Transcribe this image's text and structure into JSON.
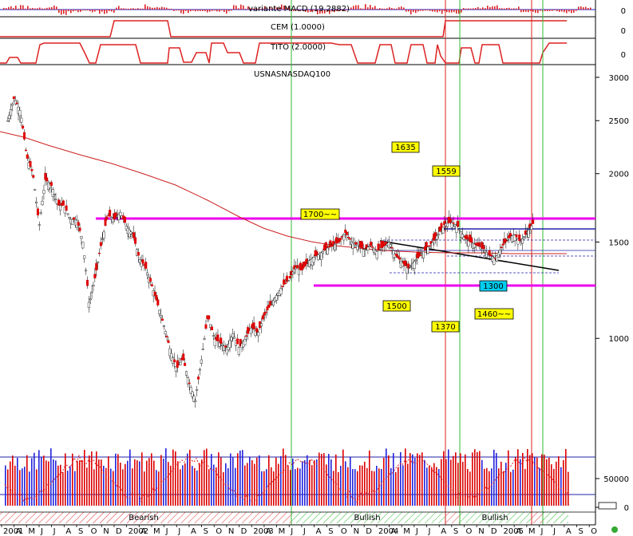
{
  "chart_data": {
    "type": "candlestick",
    "title": "USNASNASDAQ100",
    "x_axis": {
      "labels": [
        "2001",
        "A",
        "M",
        "J",
        "J",
        "A",
        "S",
        "O",
        "N",
        "D",
        "2002",
        "A",
        "M",
        "J",
        "J",
        "A",
        "S",
        "O",
        "N",
        "D",
        "2003",
        "A",
        "M",
        "J",
        "J",
        "A",
        "S",
        "O",
        "N",
        "D",
        "2004",
        "A",
        "M",
        "J",
        "J",
        "A",
        "S",
        "O",
        "N",
        "D",
        "2005",
        "A",
        "M",
        "J",
        "J",
        "A",
        "S",
        "O"
      ]
    },
    "y_axis": {
      "scale": "log",
      "tick_labels": [
        "3000",
        "2500",
        "2000",
        "1500",
        "1000"
      ],
      "ticks": [
        3000,
        2500,
        2000,
        1500,
        1000
      ],
      "range": [
        730,
        3050
      ]
    },
    "indicators": [
      {
        "name": "variante MACD (19.2882)",
        "axis_label": "0"
      },
      {
        "name": "CEM (1.0000)",
        "axis_label": "0"
      },
      {
        "name": "TITO (2.0000)",
        "axis_label": "0"
      }
    ],
    "volume": {
      "tick_labels": [
        "50000",
        "0"
      ],
      "ticks": [
        50000,
        0
      ]
    },
    "annotations": [
      "1635",
      "1559",
      "1700~~",
      "1500",
      "1370",
      "1300",
      "1460~~"
    ],
    "horizontal_levels": [
      1700,
      1300,
      1620
    ],
    "regimes": [
      "Bearish",
      "Bullish",
      "Bullish"
    ],
    "colors": {
      "candle": "#e00000",
      "moving_average": "#cc2222",
      "level_line": "#ee00ee",
      "green_marker": "#22bb22",
      "red_marker": "#dd2222",
      "volume_up": "#2222dd",
      "volume_down": "#dd0000",
      "label_box": "#ffff00"
    },
    "price": [
      {
        "t": 0.5,
        "close": 2500
      },
      {
        "t": 1,
        "close": 2750
      },
      {
        "t": 1.5,
        "close": 2600
      },
      {
        "t": 2,
        "close": 2150
      },
      {
        "t": 2.5,
        "close": 2000
      },
      {
        "t": 3,
        "close": 1600
      },
      {
        "t": 3.5,
        "close": 1950
      },
      {
        "t": 4,
        "close": 1900
      },
      {
        "t": 4.5,
        "close": 1750
      },
      {
        "t": 5,
        "close": 1750
      },
      {
        "t": 5.5,
        "close": 1650
      },
      {
        "t": 6,
        "close": 1650
      },
      {
        "t": 6.5,
        "close": 1500
      },
      {
        "t": 7,
        "close": 1150
      },
      {
        "t": 7.5,
        "close": 1300
      },
      {
        "t": 8,
        "close": 1500
      },
      {
        "t": 8.5,
        "close": 1680
      },
      {
        "t": 9,
        "close": 1650
      },
      {
        "t": 9.5,
        "close": 1700
      },
      {
        "t": 10,
        "close": 1600
      },
      {
        "t": 10.5,
        "close": 1550
      },
      {
        "t": 11,
        "close": 1400
      },
      {
        "t": 11.5,
        "close": 1350
      },
      {
        "t": 12,
        "close": 1250
      },
      {
        "t": 12.5,
        "close": 1150
      },
      {
        "t": 13,
        "close": 1050
      },
      {
        "t": 13.5,
        "close": 950
      },
      {
        "t": 14,
        "close": 880
      },
      {
        "t": 14.5,
        "close": 920
      },
      {
        "t": 15,
        "close": 830
      },
      {
        "t": 15.5,
        "close": 770
      },
      {
        "t": 16,
        "close": 920
      },
      {
        "t": 16.5,
        "close": 1100
      },
      {
        "t": 17,
        "close": 1000
      },
      {
        "t": 17.5,
        "close": 980
      },
      {
        "t": 18,
        "close": 960
      },
      {
        "t": 18.5,
        "close": 1020
      },
      {
        "t": 19,
        "close": 960
      },
      {
        "t": 19.5,
        "close": 1000
      },
      {
        "t": 20,
        "close": 1050
      },
      {
        "t": 20.5,
        "close": 1020
      },
      {
        "t": 21,
        "close": 1100
      },
      {
        "t": 21.5,
        "close": 1150
      },
      {
        "t": 22,
        "close": 1200
      },
      {
        "t": 22.5,
        "close": 1250
      },
      {
        "t": 23,
        "close": 1280
      },
      {
        "t": 23.5,
        "close": 1350
      },
      {
        "t": 24,
        "close": 1330
      },
      {
        "t": 24.5,
        "close": 1380
      },
      {
        "t": 25,
        "close": 1410
      },
      {
        "t": 25.5,
        "close": 1430
      },
      {
        "t": 26,
        "close": 1460
      },
      {
        "t": 26.5,
        "close": 1480
      },
      {
        "t": 27,
        "close": 1500
      },
      {
        "t": 27.5,
        "close": 1560
      },
      {
        "t": 28,
        "close": 1500
      },
      {
        "t": 28.5,
        "close": 1480
      },
      {
        "t": 29,
        "close": 1450
      },
      {
        "t": 29.5,
        "close": 1480
      },
      {
        "t": 30,
        "close": 1440
      },
      {
        "t": 30.5,
        "close": 1470
      },
      {
        "t": 31,
        "close": 1500
      },
      {
        "t": 31.5,
        "close": 1420
      },
      {
        "t": 32,
        "close": 1380
      },
      {
        "t": 32.5,
        "close": 1340
      },
      {
        "t": 33,
        "close": 1380
      },
      {
        "t": 33.5,
        "close": 1420
      },
      {
        "t": 34,
        "close": 1460
      },
      {
        "t": 34.5,
        "close": 1500
      },
      {
        "t": 35,
        "close": 1560
      },
      {
        "t": 35.5,
        "close": 1620
      },
      {
        "t": 36,
        "close": 1630
      },
      {
        "t": 36.5,
        "close": 1600
      },
      {
        "t": 37,
        "close": 1530
      },
      {
        "t": 37.5,
        "close": 1500
      },
      {
        "t": 38,
        "close": 1480
      },
      {
        "t": 38.5,
        "close": 1460
      },
      {
        "t": 39,
        "close": 1420
      },
      {
        "t": 39.5,
        "close": 1400
      },
      {
        "t": 40,
        "close": 1470
      },
      {
        "t": 40.5,
        "close": 1520
      },
      {
        "t": 41,
        "close": 1550
      },
      {
        "t": 41.5,
        "close": 1500
      },
      {
        "t": 42,
        "close": 1560
      },
      {
        "t": 42.5,
        "close": 1620
      }
    ]
  },
  "regime_labels": [
    "Bearish",
    "Bullish",
    "Bullish"
  ]
}
